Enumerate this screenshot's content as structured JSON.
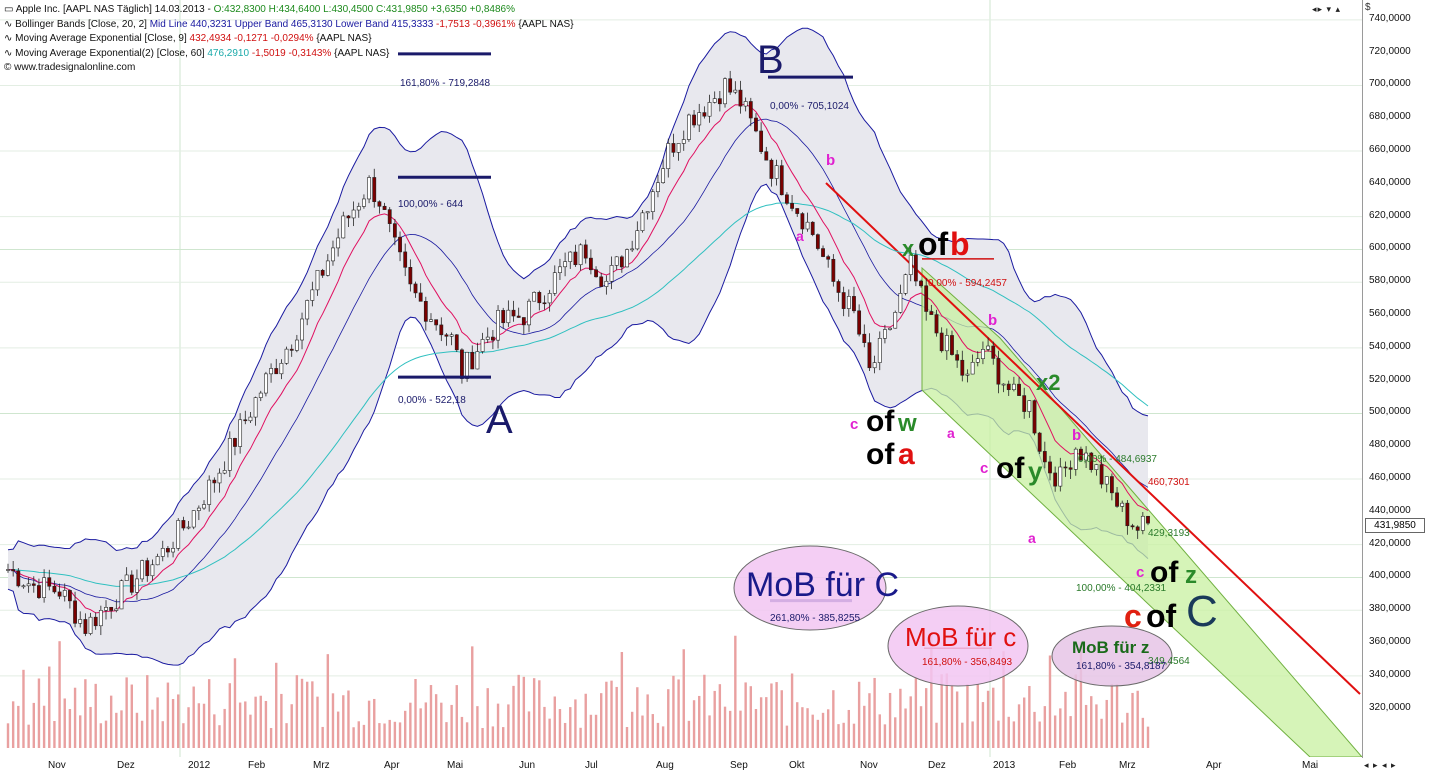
{
  "window": {
    "currency_symbol": "$",
    "nav_buttons": "◂▸ ▾ ▴",
    "nav_buttons_bottom": "◂ ▸ ◂ ▸"
  },
  "legend": {
    "line1_prefix": "Apple Inc. [AAPL NAS  Täglich] 14.03.2013 - ",
    "line1_ohlc": "O:432,8300 H:434,6400 L:430,4500 C:431,9850 +3,6350 +0,8486%",
    "line2_prefix": "Bollinger Bands [Close, 20, 2] ",
    "line2_values": "Mid Line 440,3231 Upper Band 465,3130 Lower Band 415,3333",
    "line2_change": " -1,7513 -0,3961% ",
    "line2_suffix": "{AAPL NAS}",
    "line3_prefix": "Moving Average Exponential [Close, 9] ",
    "line3_value": "432,4934 -0,1271 -0,0294%",
    "line3_suffix": " {AAPL NAS}",
    "line4_prefix": "Moving Average Exponential(2) [Close, 60] ",
    "line4_value": "476,2910",
    "line4_change": " -1,5019 -0,3143% ",
    "line4_suffix": "{AAPL NAS}",
    "line5": "© www.tradesignalonline.com"
  },
  "colors": {
    "candle_up": "#ffffff",
    "candle_down": "#7a0000",
    "bollinger": "#1a1aa0",
    "bollinger_fill": "#e8e8ee",
    "ema9": "#e01060",
    "ema60": "#30c0c0",
    "trendline": "#e01010",
    "channel_fill": "#c8f0a0",
    "channel_edge": "#70b040",
    "fib_bar": "#1a1a6a",
    "volume": "#e9a0a0",
    "grid": "#cfe6cf"
  },
  "chart_data": {
    "type": "candlestick",
    "title": "Apple Inc. [AAPL NAS  Täglich]",
    "xlabel": "",
    "ylabel": "$",
    "ylim": [
      296,
      746
    ],
    "y_ticks": [
      "740,0000",
      "720,0000",
      "700,0000",
      "680,0000",
      "660,0000",
      "640,0000",
      "620,0000",
      "600,0000",
      "580,0000",
      "560,0000",
      "540,0000",
      "520,0000",
      "500,0000",
      "480,0000",
      "460,0000",
      "440,0000",
      "420,0000",
      "400,0000",
      "380,0000",
      "360,0000",
      "340,0000",
      "320,0000"
    ],
    "x_ticks": [
      "Nov",
      "Dez",
      "2012",
      "Feb",
      "Mrz",
      "Apr",
      "Mai",
      "Jun",
      "Jul",
      "Aug",
      "Sep",
      "Okt",
      "Nov",
      "Dez",
      "2013",
      "Feb",
      "Mrz",
      "Apr",
      "Mai"
    ],
    "last_price": 431.985,
    "price_path": [
      [
        0,
        405
      ],
      [
        5,
        395
      ],
      [
        10,
        392
      ],
      [
        15,
        370
      ],
      [
        20,
        385
      ],
      [
        25,
        400
      ],
      [
        30,
        415
      ],
      [
        35,
        435
      ],
      [
        40,
        460
      ],
      [
        45,
        490
      ],
      [
        50,
        520
      ],
      [
        55,
        545
      ],
      [
        60,
        580
      ],
      [
        65,
        615
      ],
      [
        70,
        640
      ],
      [
        72,
        630
      ],
      [
        75,
        600
      ],
      [
        78,
        575
      ],
      [
        82,
        560
      ],
      [
        86,
        545
      ],
      [
        88,
        525
      ],
      [
        91,
        540
      ],
      [
        95,
        555
      ],
      [
        100,
        560
      ],
      [
        104,
        575
      ],
      [
        108,
        590
      ],
      [
        112,
        600
      ],
      [
        116,
        580
      ],
      [
        120,
        600
      ],
      [
        124,
        630
      ],
      [
        128,
        660
      ],
      [
        132,
        680
      ],
      [
        136,
        690
      ],
      [
        139,
        700
      ],
      [
        142,
        690
      ],
      [
        145,
        670
      ],
      [
        148,
        650
      ],
      [
        152,
        630
      ],
      [
        156,
        610
      ],
      [
        160,
        580
      ],
      [
        164,
        560
      ],
      [
        167,
        525
      ],
      [
        170,
        545
      ],
      [
        173,
        570
      ],
      [
        175,
        590
      ],
      [
        178,
        560
      ],
      [
        182,
        540
      ],
      [
        186,
        520
      ],
      [
        189,
        540
      ],
      [
        192,
        525
      ],
      [
        195,
        510
      ],
      [
        198,
        505
      ],
      [
        201,
        470
      ],
      [
        204,
        460
      ],
      [
        207,
        480
      ],
      [
        210,
        470
      ],
      [
        213,
        455
      ],
      [
        216,
        440
      ],
      [
        219,
        430
      ],
      [
        221,
        432
      ]
    ],
    "bollinger": {
      "mid": 440.3231,
      "upper": 465.313,
      "lower": 415.3333
    },
    "ema9": 432.4934,
    "ema60": 476.291,
    "wave_labels": [
      "A",
      "B",
      "C"
    ],
    "fibonacci_levels": [
      {
        "label": "161,80% - 719,2848",
        "value": 719.2848
      },
      {
        "label": "100,00% - 644",
        "value": 644
      },
      {
        "label": "0,00% - 522,18",
        "value": 522.18
      },
      {
        "label": "0,00% - 705,1024",
        "value": 705.1024
      },
      {
        "label": "0,00% - 594,2457",
        "value": 594.2457
      },
      {
        "label": "0,00% - 484,6937",
        "value": 484.6937
      },
      {
        "label": "100,00% - 404,2331",
        "value": 404.2331
      },
      {
        "label": "261,80% - 385,8255",
        "value": 385.8255
      },
      {
        "label": "161,80% - 356,8493",
        "value": 356.8493
      },
      {
        "label": "161,80% - 354,8187",
        "value": 354.8187
      }
    ],
    "price_labels": [
      "460,7301",
      "429,3193",
      "349,4564"
    ]
  },
  "annotations": {
    "A": "A",
    "B": "B",
    "C": "C",
    "fib_719": "161,80% - 719,2848",
    "fib_644": "100,00% - 644",
    "fib_522": "0,00% - 522,18",
    "fib_705": "0,00% - 705,1024",
    "fib_594": "0,00% - 594,2457",
    "fib_484": "0,00% - 484,6937",
    "fib_404": "100,00% - 404,2331",
    "fib_385": "261,80% - 385,8255",
    "fib_356": "161,80% - 356,8493",
    "fib_354": "161,80% - 354,8187",
    "pl_460": "460,7301",
    "pl_429": "429,3193",
    "pl_349": "349,4564",
    "mob_c1": "MoB für C",
    "mob_c2": "MoB für c",
    "mob_z": "MoB für z",
    "a1": "a",
    "b1": "b",
    "x1": "x",
    "of1": "of",
    "bb": "b",
    "c1": "c",
    "of2": "of",
    "w": "w",
    "of3": "of",
    "a_red": "a",
    "a2": "a",
    "b2": "b",
    "c2": "c",
    "of4": "of",
    "y": "y",
    "x2": "x2",
    "a3": "a",
    "b3": "b",
    "c3": "c",
    "of5": "of",
    "z": "z",
    "c_red": "c",
    "of6": "of"
  }
}
